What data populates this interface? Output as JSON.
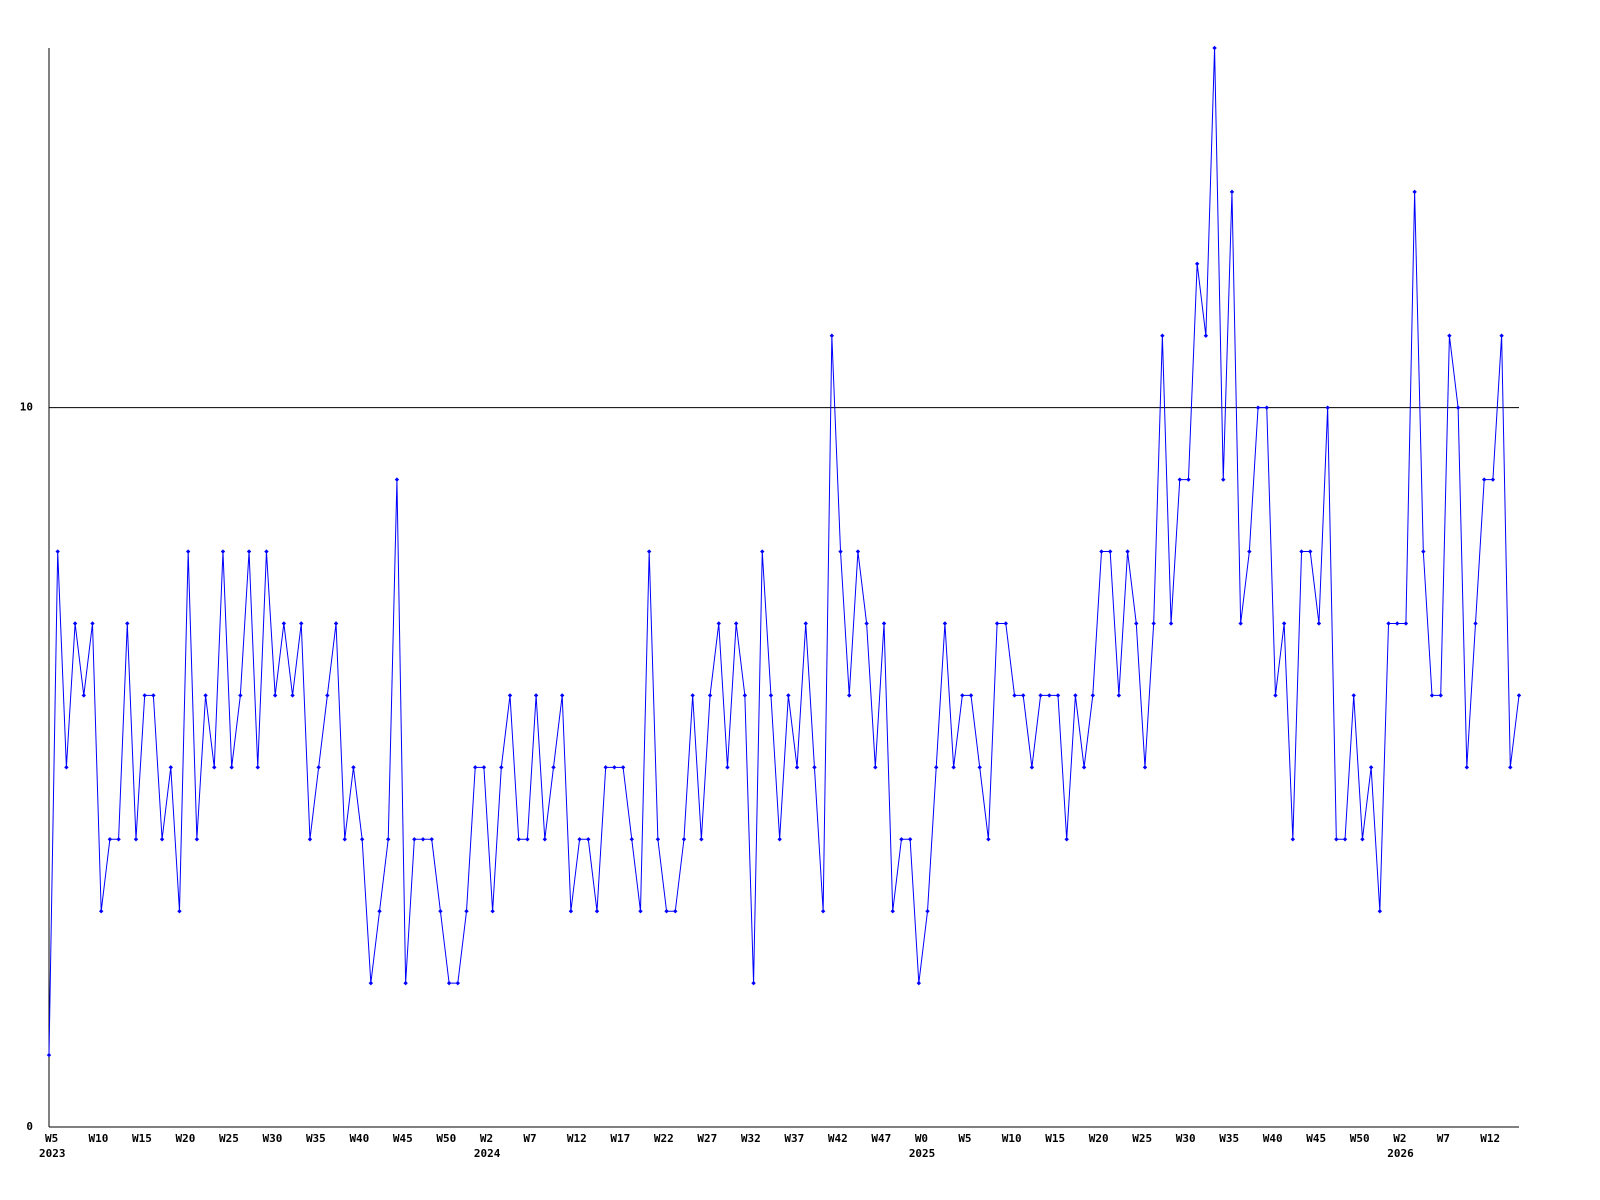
{
  "chart_data": {
    "type": "line",
    "categories": [
      "W5",
      null,
      null,
      null,
      null,
      "W10",
      null,
      null,
      null,
      null,
      "W15",
      null,
      null,
      null,
      null,
      "W20",
      null,
      null,
      null,
      null,
      "W25",
      null,
      null,
      null,
      null,
      "W30",
      null,
      null,
      null,
      null,
      "W35",
      null,
      null,
      null,
      null,
      "W40",
      null,
      null,
      null,
      null,
      "W45",
      null,
      null,
      null,
      null,
      "W50",
      null,
      null,
      null,
      null,
      "W2",
      null,
      null,
      null,
      null,
      "W7",
      null,
      null,
      null,
      null,
      "W12",
      null,
      null,
      null,
      null,
      "W17",
      null,
      null,
      null,
      null,
      "W22",
      null,
      null,
      null,
      null,
      "W27",
      null,
      null,
      null,
      null,
      "W32",
      null,
      null,
      null,
      null,
      "W37",
      null,
      null,
      null,
      null,
      "W42",
      null,
      null,
      null,
      null,
      "W47",
      null,
      null,
      null,
      null,
      "W0",
      null,
      null,
      null,
      null,
      "W5",
      null,
      null,
      null,
      null,
      "W10",
      null,
      null,
      null,
      null,
      "W15",
      null,
      null,
      null,
      null,
      "W20",
      null,
      null,
      null,
      null,
      "W25",
      null,
      null,
      null,
      null,
      "W30",
      null,
      null,
      null,
      null,
      "W35",
      null,
      null,
      null,
      null,
      "W40",
      null,
      null,
      null,
      null,
      "W45",
      null,
      null,
      null,
      null,
      "W50",
      null,
      null,
      null,
      null,
      "W2",
      null,
      null,
      null,
      null,
      "W7",
      null,
      null,
      null,
      null,
      "W12",
      null,
      null,
      null,
      null
    ],
    "year_labels": [
      {
        "index": 0,
        "label": "2023"
      },
      {
        "index": 50,
        "label": "2024"
      },
      {
        "index": 100,
        "label": "2025"
      },
      {
        "index": 155,
        "label": "2026"
      }
    ],
    "series": [
      {
        "color": "#0000ff",
        "values": [
          1,
          8,
          5,
          7,
          6,
          7,
          3,
          4,
          4,
          7,
          4,
          6,
          6,
          4,
          5,
          3,
          8,
          4,
          6,
          5,
          8,
          5,
          6,
          8,
          5,
          8,
          6,
          7,
          6,
          7,
          4,
          5,
          6,
          7,
          4,
          5,
          4,
          2,
          3,
          4,
          9,
          2,
          4,
          4,
          4,
          3,
          2,
          2,
          3,
          5,
          5,
          3,
          5,
          6,
          4,
          4,
          6,
          4,
          5,
          6,
          3,
          4,
          4,
          3,
          5,
          5,
          5,
          4,
          3,
          8,
          4,
          3,
          3,
          4,
          6,
          4,
          6,
          7,
          5,
          7,
          6,
          2,
          8,
          6,
          4,
          6,
          5,
          7,
          5,
          3,
          11,
          8,
          6,
          8,
          7,
          5,
          7,
          3,
          4,
          4,
          2,
          3,
          5,
          7,
          5,
          6,
          6,
          5,
          4,
          7,
          7,
          6,
          6,
          5,
          6,
          6,
          6,
          4,
          6,
          5,
          6,
          8,
          8,
          6,
          8,
          7,
          5,
          7,
          11,
          7,
          9,
          9,
          12,
          11,
          15,
          9,
          13,
          7,
          8,
          10,
          10,
          6,
          7,
          4,
          8,
          8,
          7,
          10,
          4,
          4,
          6,
          4,
          5,
          3,
          7,
          7,
          7,
          13,
          8,
          6,
          6,
          11,
          10,
          5,
          7,
          9,
          9,
          11,
          5,
          6
        ]
      }
    ],
    "ylim": [
      0,
      15
    ],
    "yticks": [
      0,
      10
    ],
    "grid": true
  }
}
